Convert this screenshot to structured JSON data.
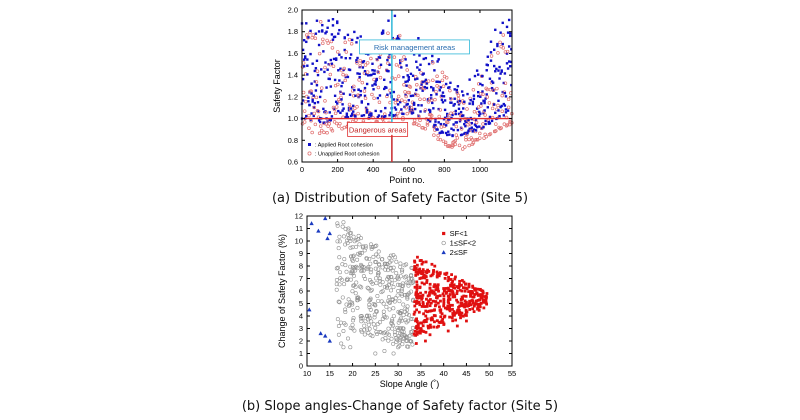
{
  "captions": {
    "a": "(a) Distribution of Safety Factor (Site 5)",
    "b": "(b) Slope angles-Change of Safety factor (Site 5)"
  },
  "colors": {
    "applied": "#1010c8",
    "unapplied": "#e07070",
    "sf_lt1": "#e01010",
    "sf_mid": "#909090",
    "sf_ge2": "#1a3ac0",
    "risk_line": "#30b8d8",
    "danger_line": "#e03030"
  },
  "chart_data": [
    {
      "id": "chart-a",
      "type": "scatter",
      "title": "",
      "xlabel": "Point no.",
      "ylabel": "Safety Factor",
      "xlim": [
        0,
        1180
      ],
      "ylim": [
        0.6,
        2.0
      ],
      "xticks": [
        "0",
        "200",
        "400",
        "600",
        "800",
        "1000"
      ],
      "xtick_values": [
        0,
        200,
        400,
        600,
        800,
        1000
      ],
      "yticks": [
        "0.6",
        "0.8",
        "1.0",
        "1.2",
        "1.4",
        "1.6",
        "1.8",
        "2.0"
      ],
      "ytick_values": [
        0.6,
        0.8,
        1.0,
        1.2,
        1.4,
        1.6,
        1.8,
        2.0
      ],
      "grid": false,
      "legend_position": "bottom-left",
      "reference_lines": {
        "horizontal_sf": 1.0,
        "vertical_point": 505
      },
      "annotations": [
        {
          "text": "Risk management areas",
          "at": [
            632,
            1.66
          ]
        },
        {
          "text": "Dangerous areas",
          "at": [
            425,
            0.9
          ]
        }
      ],
      "series": [
        {
          "name": ": Applied Root cohesion",
          "marker": "filled-square",
          "approximate_envelope": {
            "x": [
              0,
              100,
              200,
              300,
              400,
              500,
              600,
              700,
              800,
              900,
              1000,
              1100,
              1180
            ],
            "y_min": [
              1.0,
              0.95,
              1.0,
              1.02,
              1.0,
              1.02,
              1.05,
              1.0,
              0.82,
              0.85,
              0.9,
              1.0,
              1.05
            ],
            "y_max": [
              2.0,
              2.0,
              1.9,
              1.8,
              1.7,
              2.0,
              1.8,
              1.7,
              1.5,
              1.3,
              1.5,
              1.9,
              2.0
            ]
          }
        },
        {
          "name": ": Unapplied Root cohesion",
          "marker": "open-circle",
          "approximate_envelope": {
            "x": [
              0,
              100,
              200,
              300,
              400,
              500,
              600,
              700,
              800,
              900,
              1000,
              1100,
              1180
            ],
            "y_min": [
              0.88,
              0.85,
              0.9,
              0.92,
              0.9,
              0.92,
              0.95,
              0.9,
              0.75,
              0.72,
              0.8,
              0.9,
              0.95
            ],
            "y_max": [
              1.9,
              1.9,
              1.8,
              1.7,
              1.6,
              1.9,
              1.7,
              1.6,
              1.4,
              1.2,
              1.4,
              1.8,
              1.9
            ]
          }
        }
      ]
    },
    {
      "id": "chart-b",
      "type": "scatter",
      "title": "",
      "xlabel": "Slope Angle (˚)",
      "ylabel": "Change of Safety Factor (%)",
      "xlim": [
        10,
        55
      ],
      "ylim": [
        0,
        12
      ],
      "xticks": [
        "10",
        "15",
        "20",
        "25",
        "30",
        "35",
        "40",
        "45",
        "50",
        "55"
      ],
      "xtick_values": [
        10,
        15,
        20,
        25,
        30,
        35,
        40,
        45,
        50,
        55
      ],
      "yticks": [
        "0",
        "1",
        "2",
        "3",
        "4",
        "5",
        "6",
        "7",
        "8",
        "9",
        "10",
        "11",
        "12"
      ],
      "ytick_values": [
        0,
        1,
        2,
        3,
        4,
        5,
        6,
        7,
        8,
        9,
        10,
        11,
        12
      ],
      "grid": false,
      "legend_position": "top-right",
      "series": [
        {
          "name": "SF<1",
          "marker": "filled-square",
          "approximate_region": {
            "x_range": [
              33.5,
              50
            ],
            "y_range": [
              1.5,
              8.2
            ]
          },
          "sample_points": [
            [
              34,
              7.8
            ],
            [
              36,
              7.2
            ],
            [
              38,
              6.5
            ],
            [
              40,
              6.2
            ],
            [
              42,
              5.8
            ],
            [
              44,
              6.0
            ],
            [
              46,
              5.9
            ],
            [
              48,
              6.1
            ],
            [
              49.5,
              5.8
            ],
            [
              35,
              3.0
            ],
            [
              37,
              2.5
            ],
            [
              39,
              3.5
            ],
            [
              41,
              2.8
            ],
            [
              43,
              3.2
            ],
            [
              45,
              3.6
            ],
            [
              34,
              1.8
            ],
            [
              36,
              2.0
            ],
            [
              38,
              4.5
            ],
            [
              40,
              4.8
            ],
            [
              42,
              4.2
            ]
          ]
        },
        {
          "name": "1≤SF<2",
          "marker": "open-circle",
          "approximate_region": {
            "x_range": [
              16,
              33.5
            ],
            "y_range": [
              0.8,
              11.5
            ]
          },
          "sample_points": [
            [
              18,
              11.5
            ],
            [
              19,
              10.5
            ],
            [
              20,
              9.5
            ],
            [
              21,
              8.5
            ],
            [
              22,
              8.0
            ],
            [
              24,
              7.5
            ],
            [
              26,
              7.0
            ],
            [
              28,
              6.5
            ],
            [
              30,
              6.0
            ],
            [
              32,
              5.5
            ],
            [
              17,
              2.5
            ],
            [
              18,
              1.5
            ],
            [
              20,
              3.0
            ],
            [
              22,
              4.0
            ],
            [
              24,
              4.5
            ],
            [
              26,
              3.5
            ],
            [
              28,
              2.5
            ],
            [
              30,
              1.5
            ],
            [
              32,
              2.0
            ],
            [
              25,
              1.0
            ],
            [
              27,
              1.2
            ],
            [
              29,
              1.0
            ]
          ]
        },
        {
          "name": "2≤SF",
          "marker": "filled-triangle",
          "points": [
            [
              11,
              11.4
            ],
            [
              12.5,
              10.8
            ],
            [
              14.5,
              10.2
            ],
            [
              15,
              10.6
            ],
            [
              14,
              11.8
            ],
            [
              10.5,
              4.5
            ],
            [
              13,
              2.6
            ],
            [
              14,
              2.4
            ],
            [
              15,
              2.0
            ]
          ]
        }
      ]
    }
  ]
}
